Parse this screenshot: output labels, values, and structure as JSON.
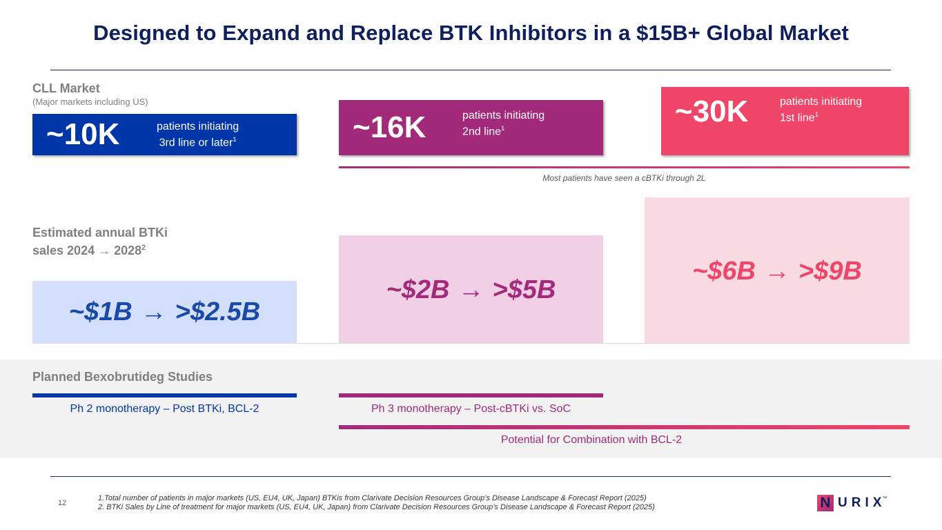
{
  "title": "Designed to Expand and Replace BTK Inhibitors in a $15B+ Global Market",
  "cll": {
    "heading": "CLL Market",
    "subheading": "(Major markets including US)"
  },
  "patients": [
    {
      "value": "~10K",
      "line1": "patients initiating",
      "line2": "3rd line or later",
      "sup": "1",
      "color": "#0036a8"
    },
    {
      "value": "~16K",
      "line1": "patients initiating",
      "line2": "2nd line",
      "sup": "1",
      "color": "#a32a7a"
    },
    {
      "value": "~30K",
      "line1": "patients initiating",
      "line2": "1st line",
      "sup": "1",
      "color": "#ef4569"
    }
  ],
  "cbtki_note": "Most patients have seen a cBTKi through 2L",
  "sales": {
    "heading_line1": "Estimated annual BTKi",
    "heading_line2a": "sales 2024",
    "arrow": "→",
    "heading_line2b": "2028",
    "heading_sup": "2",
    "items": [
      {
        "from": "~$1B",
        "arrow": "→",
        "to": ">$2.5B",
        "color": "#1a4aa8",
        "bg": "#d4e0fb"
      },
      {
        "from": "~$2B",
        "arrow": "→",
        "to": ">$5B",
        "color": "#a32a7a",
        "bg": "#f1d0e6"
      },
      {
        "from": "~$6B",
        "arrow": "→",
        "to": ">$9B",
        "color": "#ef4569",
        "bg": "#fadbe2"
      }
    ]
  },
  "studies": {
    "heading": "Planned Bexobrutideg Studies",
    "ph2": "Ph 2 monotherapy – Post BTKi, BCL-2",
    "ph3": "Ph 3 monotherapy – Post-cBTKi vs. SoC",
    "combo": "Potential for Combination with BCL-2"
  },
  "footnotes": {
    "page_number": "12",
    "note1": "1.Total number of patients in major markets (US, EU4, UK, Japan) BTKis from Clarivate Decision Resources Group’s Disease Landscape & Forecast Report (2025)",
    "note2": "2. BTKi Sales by Line of treatment for major markets (US, EU4, UK, Japan) from Clarivate Decision Resources Group’s Disease Landscape & Forecast Report (2025)"
  },
  "logo": {
    "letter": "N",
    "rest": "URIX",
    "tm": "™"
  }
}
